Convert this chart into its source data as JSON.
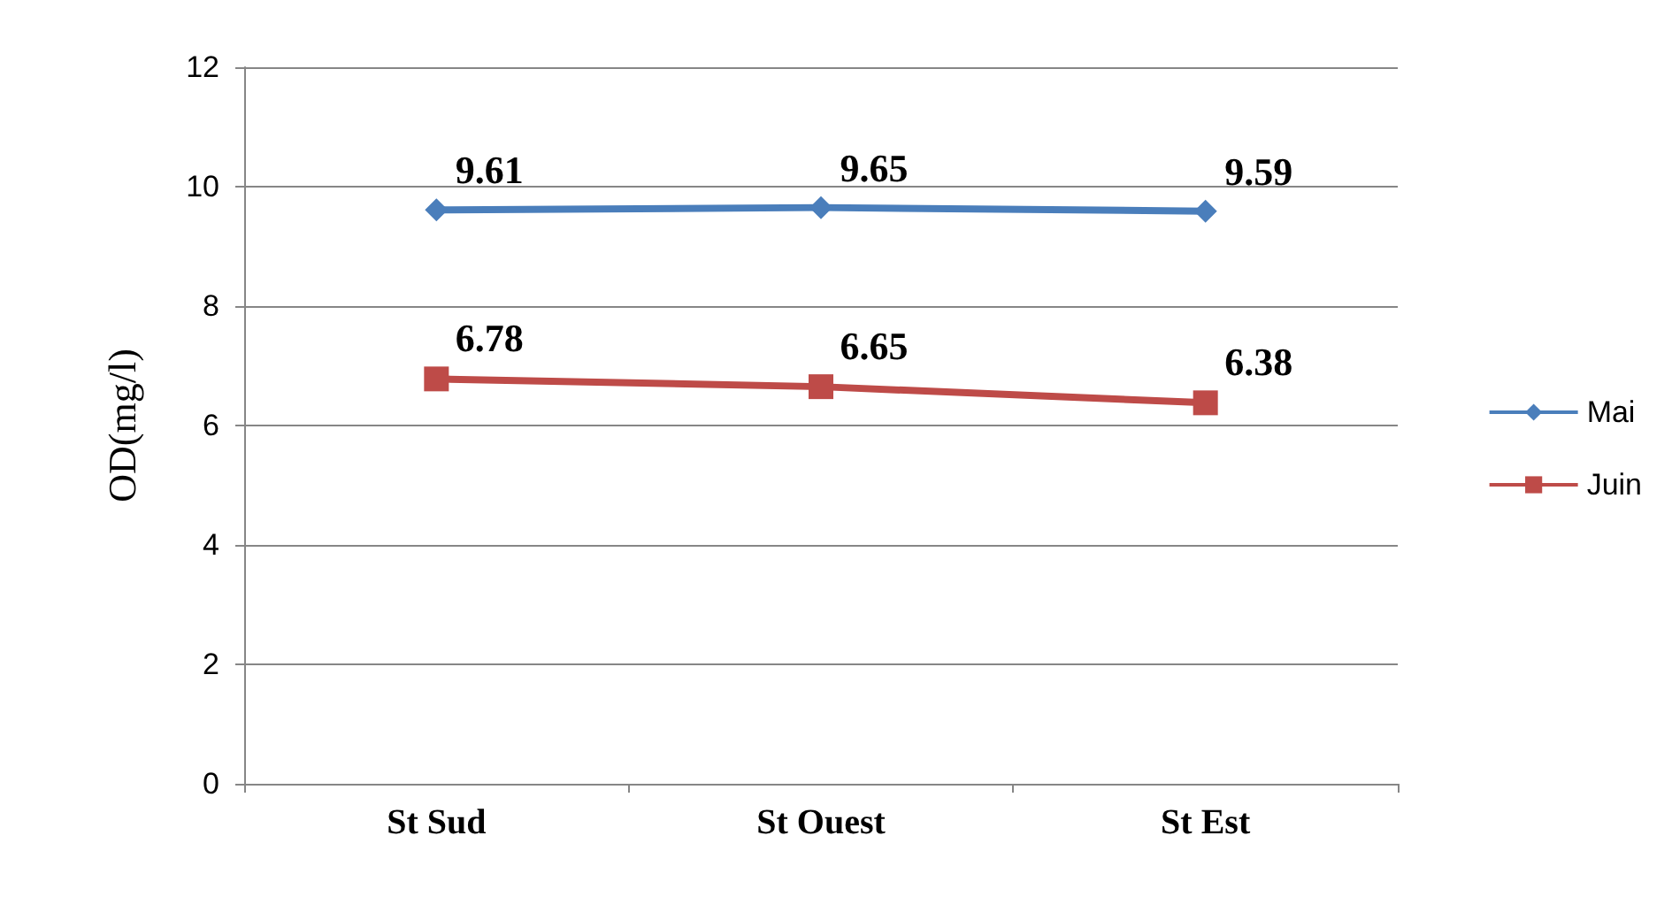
{
  "chart_data": {
    "type": "line",
    "ylabel": "OD(mg/l)",
    "categories": [
      "St Sud",
      "St Ouest",
      "St Est"
    ],
    "series": [
      {
        "name": "Mai",
        "color": "#4a7ebb",
        "values": [
          9.61,
          9.65,
          9.59
        ],
        "marker": "diamond"
      },
      {
        "name": "Juin",
        "color": "#be4b48",
        "values": [
          6.78,
          6.65,
          6.38
        ],
        "marker": "square"
      }
    ],
    "ylim": [
      0,
      12
    ],
    "yticks": [
      0,
      2,
      4,
      6,
      8,
      10,
      12
    ],
    "grid": "y",
    "legend": "right",
    "data_labels": true
  }
}
